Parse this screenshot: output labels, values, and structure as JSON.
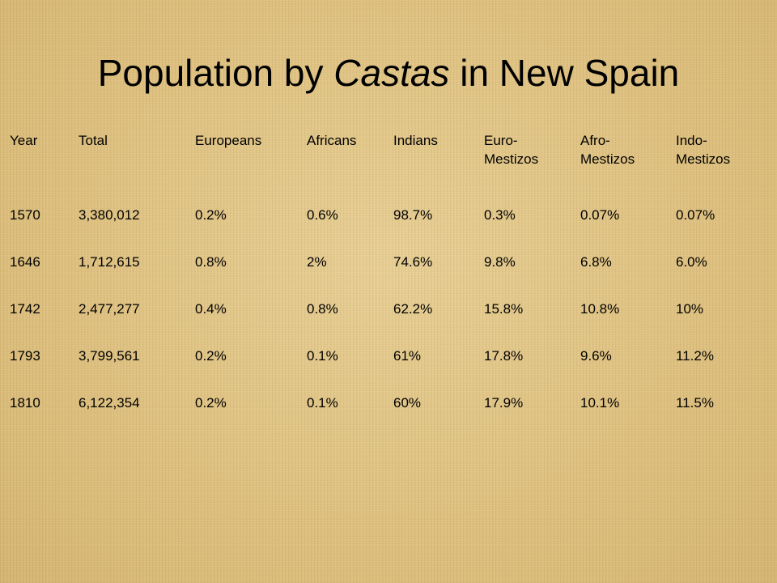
{
  "title": {
    "prefix": "Population by ",
    "emphasis": "Castas",
    "suffix": " in New Spain"
  },
  "table": {
    "headers": [
      [
        "Year"
      ],
      [
        "Total"
      ],
      [
        "Europeans"
      ],
      [
        "Africans"
      ],
      [
        "Indians"
      ],
      [
        "Euro-",
        "Mestizos"
      ],
      [
        "Afro-",
        "Mestizos"
      ],
      [
        "Indo-",
        "Mestizos"
      ]
    ],
    "rows": [
      [
        "1570",
        "3,380,012",
        "0.2%",
        "0.6%",
        "98.7%",
        "0.3%",
        "0.07%",
        "0.07%"
      ],
      [
        "1646",
        "1,712,615",
        "0.8%",
        "2%",
        "74.6%",
        "9.8%",
        "6.8%",
        "6.0%"
      ],
      [
        "1742",
        "2,477,277",
        "0.4%",
        "0.8%",
        "62.2%",
        "15.8%",
        "10.8%",
        "10%"
      ],
      [
        "1793",
        "3,799,561",
        "0.2%",
        "0.1%",
        "61%",
        "17.8%",
        "9.6%",
        "11.2%"
      ],
      [
        "1810",
        "6,122,354",
        "0.2%",
        "0.1%",
        "60%",
        "17.9%",
        "10.1%",
        "11.5%"
      ]
    ]
  }
}
